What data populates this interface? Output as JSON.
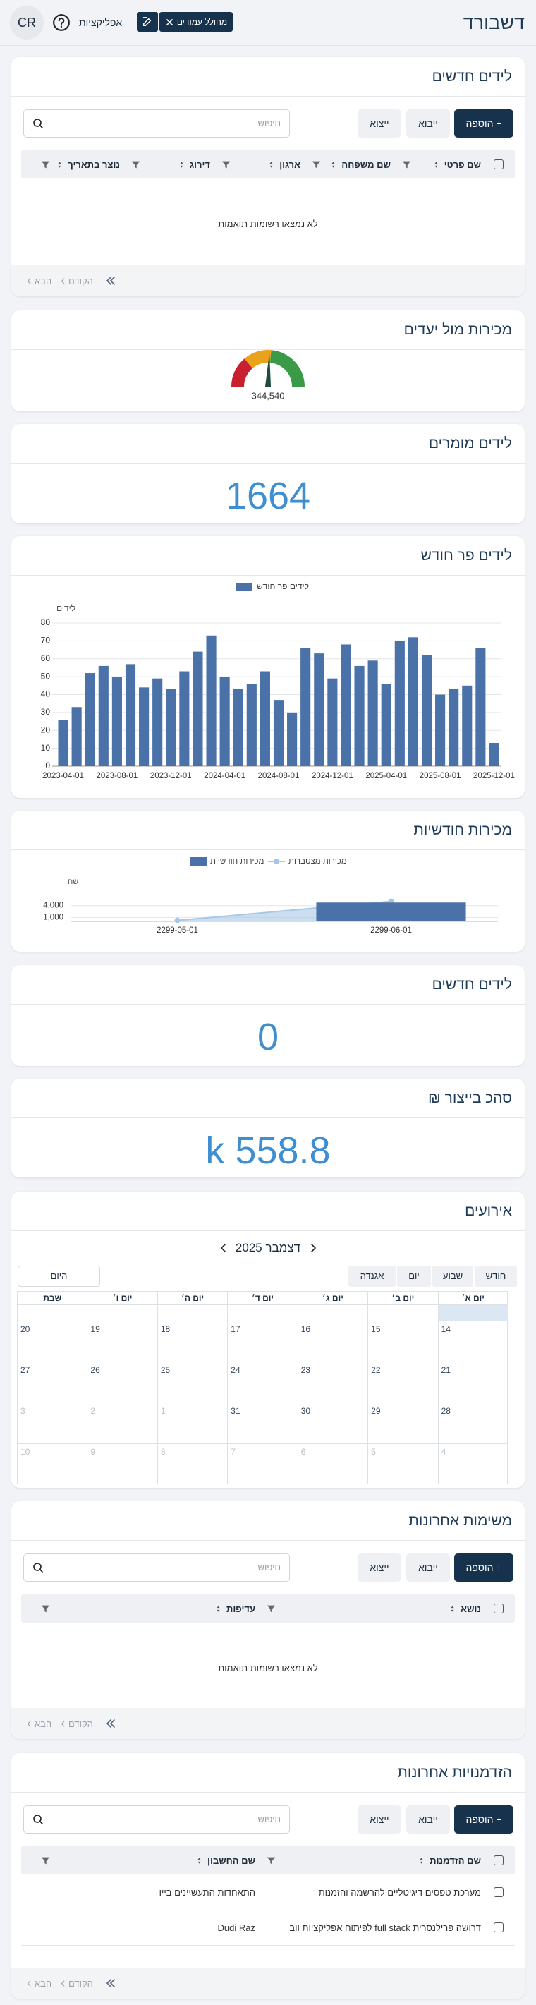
{
  "header": {
    "title": "דשבורד",
    "avatar": "CR",
    "apps": "אפליקציות",
    "page_builder": "מחולל עמודים"
  },
  "table_controls": {
    "add": "+ הוספה",
    "import": "ייבוא",
    "export": "ייצוא",
    "search_placeholder": "חיפוש",
    "previous": "הקודם",
    "next": "הבא"
  },
  "new_leads_table": {
    "title": "לידים חדשים",
    "columns": [
      "שם פרטי",
      "שם משפחה",
      "ארגון",
      "דירוג",
      "נוצר בתאריך"
    ],
    "rows": [],
    "empty_message": "לא נמצאו רשומות תואמות"
  },
  "sales_vs_targets": {
    "title": "מכירות מול יעדים",
    "value": "344,540"
  },
  "converted_leads": {
    "title": "לידים מומרים",
    "value": "1664"
  },
  "leads_per_month": {
    "chart_data": {
      "type": "bar",
      "title": "לידים פר חודש",
      "y_label": "לידים",
      "categories": [
        "2023-04-01",
        null,
        null,
        null,
        "2023-08-01",
        null,
        null,
        null,
        "2023-12-01",
        null,
        null,
        null,
        "2024-04-01",
        null,
        null,
        null,
        "2024-08-01",
        null,
        null,
        null,
        "2024-12-01",
        null,
        null,
        null,
        "2025-04-01",
        null,
        null,
        null,
        "2025-08-01",
        null,
        null,
        null,
        "2025-12-01"
      ],
      "series": [
        {
          "name": "לידים פר חודש",
          "color": "#4a72a8",
          "values": [
            26,
            33,
            52,
            56,
            50,
            57,
            44,
            49,
            43,
            53,
            64,
            73,
            50,
            43,
            46,
            53,
            37,
            30,
            66,
            63,
            49,
            68,
            56,
            59,
            46,
            70,
            72,
            62,
            40,
            43,
            45,
            66,
            13
          ]
        }
      ],
      "ylim": [
        0,
        80
      ],
      "yticks": [
        0,
        10,
        20,
        30,
        40,
        50,
        60,
        70,
        80
      ],
      "grid": true,
      "legend": "top"
    }
  },
  "monthly_sales": {
    "chart_data": {
      "type": "combo",
      "title": "מכירות חודשיות",
      "y_label": "שח",
      "categories": [
        "2299-05-01",
        "2299-06-01"
      ],
      "series": [
        {
          "name": "מכירות חודשיות",
          "type": "bar",
          "color": "#4a72a8",
          "values": [
            0,
            4800
          ]
        },
        {
          "name": "מכירות מצטברות",
          "type": "area",
          "color": "#a6c8e6",
          "values": [
            250,
            5100
          ]
        }
      ],
      "ylim": [
        0,
        7000
      ],
      "yticks": [
        {
          "value": 1000,
          "label": "1,000"
        },
        {
          "value": 4000,
          "label": "4,000"
        }
      ],
      "grid": true,
      "legend": "top"
    }
  },
  "new_leads": {
    "title": "לידים חדשים",
    "value": "0"
  },
  "total_production": {
    "title": "סהכ בייצור ₪",
    "value": "k 558.8"
  },
  "events": {
    "title": "אירועים",
    "month": "דצמבר 2025",
    "today": "היום",
    "views": [
      "חודש",
      "שבוע",
      "יום",
      "אגנדה"
    ],
    "weekdays": [
      "יום א׳",
      "יום ב׳",
      "יום ג׳",
      "יום ד׳",
      "יום ה׳",
      "יום ו׳",
      "שבת"
    ],
    "weeks": [
      [
        {
          "label": "14"
        },
        {
          "label": "15"
        },
        {
          "label": "16"
        },
        {
          "label": "17"
        },
        {
          "label": "18"
        },
        {
          "label": "19"
        },
        {
          "label": "20"
        }
      ],
      [
        {
          "label": "21"
        },
        {
          "label": "22"
        },
        {
          "label": "23"
        },
        {
          "label": "24"
        },
        {
          "label": "25"
        },
        {
          "label": "26"
        },
        {
          "label": "27"
        }
      ],
      [
        {
          "label": "28"
        },
        {
          "label": "29"
        },
        {
          "label": "30"
        },
        {
          "label": "31"
        },
        {
          "label": "1",
          "muted": true
        },
        {
          "label": "2",
          "muted": true
        },
        {
          "label": "3",
          "muted": true
        }
      ],
      [
        {
          "label": "4",
          "muted": true
        },
        {
          "label": "5",
          "muted": true
        },
        {
          "label": "6",
          "muted": true
        },
        {
          "label": "7",
          "muted": true
        },
        {
          "label": "8",
          "muted": true
        },
        {
          "label": "9",
          "muted": true
        },
        {
          "label": "10",
          "muted": true
        }
      ]
    ]
  },
  "recent_tasks_table": {
    "title": "משימות אחרונות",
    "columns": [
      "נושא",
      "עדיפות"
    ],
    "rows": [],
    "empty_message": "לא נמצאו רשומות תואמות"
  },
  "recent_opportunities_table": {
    "title": "הזדמנויות אחרונות",
    "columns": [
      "שם הזדמנות",
      "שם החשבון"
    ],
    "rows": [
      [
        "מערכת טפסים דיגיטליים להרשמה והזמנות",
        "התאחדות התעשיינים בייו"
      ],
      [
        "דרושה פרילנסרית full stack לפיתוח אפליקציות ווב",
        "Dudi Raz"
      ]
    ]
  }
}
